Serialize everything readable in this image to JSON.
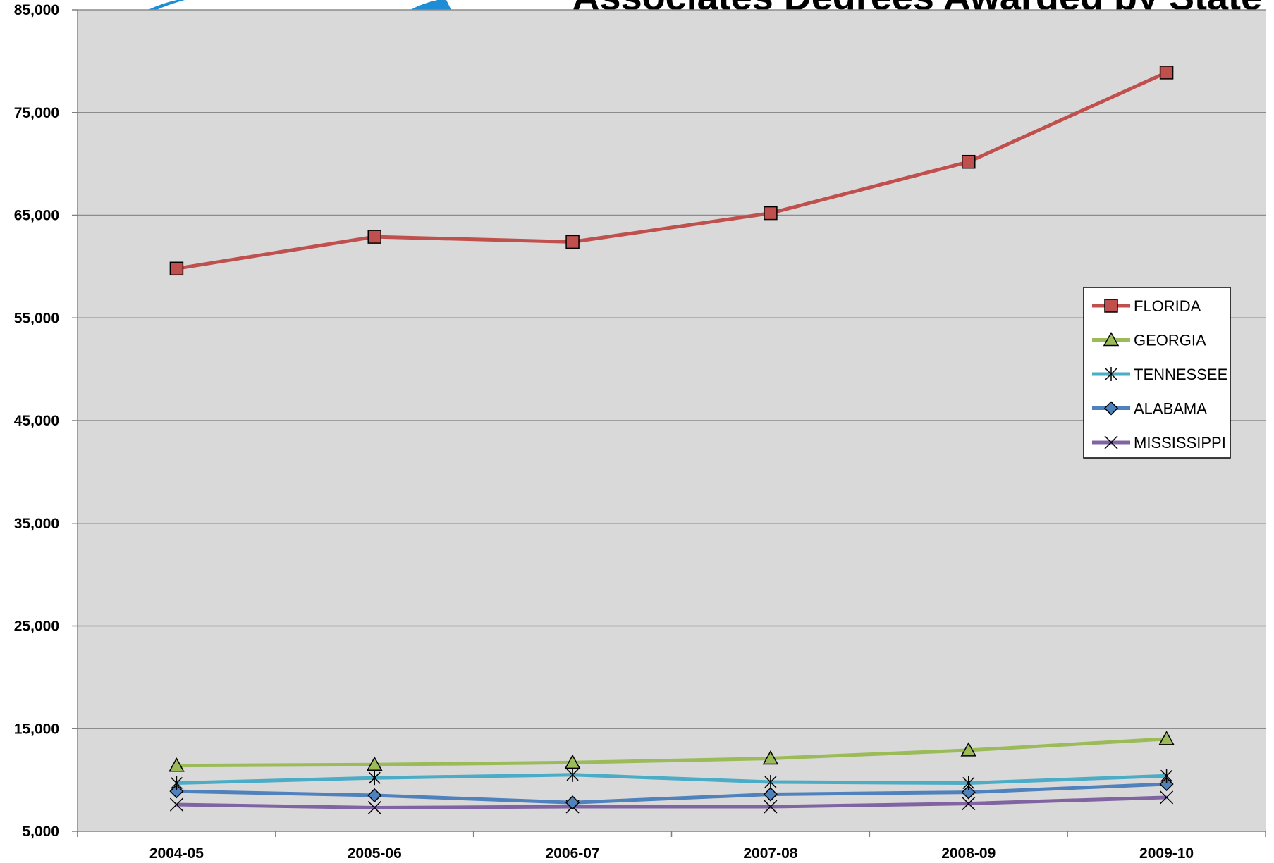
{
  "chart_data": {
    "type": "line",
    "title": "Associates Degrees Awarded by State",
    "xlabel": "",
    "ylabel": "",
    "categories": [
      "2004-05",
      "2005-06",
      "2006-07",
      "2007-08",
      "2008-09",
      "2009-10"
    ],
    "ylim": [
      5000,
      85000
    ],
    "yticks": [
      5000,
      15000,
      25000,
      35000,
      45000,
      55000,
      65000,
      75000,
      85000
    ],
    "ytick_labels": [
      "5,000",
      "15,000",
      "25,000",
      "35,000",
      "45,000",
      "55,000",
      "65,000",
      "75,000",
      "85,000"
    ],
    "grid": true,
    "legend_position": "right",
    "plot_background": "#d9d9d9",
    "series": [
      {
        "name": "FLORIDA",
        "color": "#c0504d",
        "marker": "square",
        "values": [
          59800,
          62900,
          62400,
          65200,
          70200,
          78900
        ]
      },
      {
        "name": "GEORGIA",
        "color": "#9bbb59",
        "marker": "triangle",
        "values": [
          11400,
          11500,
          11700,
          12100,
          12900,
          14000
        ]
      },
      {
        "name": "TENNESSEE",
        "color": "#4bacc6",
        "marker": "asterisk",
        "values": [
          9700,
          10200,
          10500,
          9800,
          9700,
          10400
        ]
      },
      {
        "name": "ALABAMA",
        "color": "#4f81bd",
        "marker": "diamond",
        "values": [
          8900,
          8500,
          7800,
          8600,
          8800,
          9600
        ]
      },
      {
        "name": "MISSISSIPPI",
        "color": "#8064a2",
        "marker": "x",
        "values": [
          7600,
          7300,
          7400,
          7400,
          7700,
          8300
        ]
      }
    ]
  }
}
